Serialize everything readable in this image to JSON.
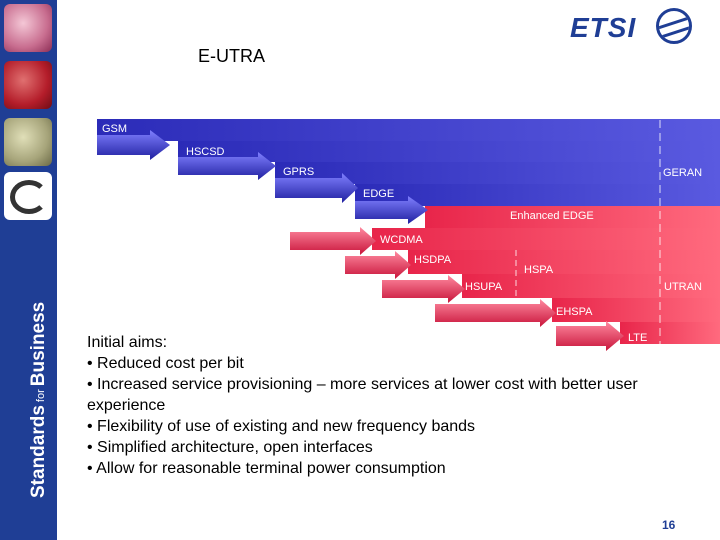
{
  "slide": {
    "title": "E-UTRA",
    "tagline_main": "Standards",
    "tagline_for": "for",
    "tagline_end": "Business",
    "logo_text": "ETSI",
    "page_number": "16"
  },
  "colors": {
    "sidebar": "#1f3e95",
    "blue_band": "#3a3ad0",
    "red_band": "#f03c5a",
    "arrow": "#e8254a"
  },
  "timeline": {
    "blue_family": "GERAN",
    "red_family": "UTRAN",
    "technologies": [
      "GSM",
      "HSCSD",
      "GPRS",
      "EDGE",
      "Enhanced EDGE",
      "WCDMA",
      "HSDPA",
      "HSUPA",
      "HSPA",
      "EHSPA",
      "LTE"
    ]
  },
  "aims": {
    "heading": "Initial aims:",
    "items": [
      "• Reduced cost per bit",
      "• Increased service provisioning – more services at lower cost with better user experience",
      "• Flexibility of use of existing and new frequency bands",
      "• Simplified architecture, open interfaces",
      "• Allow for reasonable terminal power consumption"
    ]
  }
}
